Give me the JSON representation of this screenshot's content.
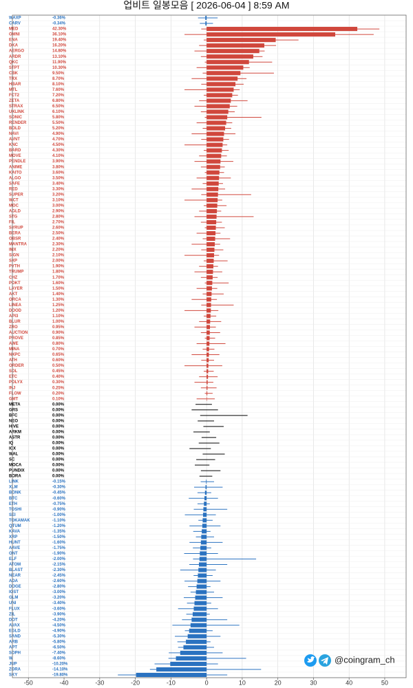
{
  "chart_data": {
    "type": "candle-bar",
    "title": "업비트 일봉모음 [ 2026-06-04 ]  8:59 AM",
    "watermark": "@coingram_ch",
    "up_color": "#d0473c",
    "flat_color": "#000000",
    "down_color": "#2a72c0",
    "grid": true,
    "xlim": [
      -54.5,
      56
    ],
    "xticks": [
      -50,
      -40,
      -30,
      -20,
      -10,
      0,
      10,
      20,
      30,
      40,
      50
    ],
    "categories": [
      "WAXP",
      "CARV",
      "MED",
      "OMNI",
      "ENA",
      "DKA",
      "AERGO",
      "ARDR",
      "QKC",
      "STPT",
      "CBK",
      "TRX",
      "HBAR",
      "MTL",
      "FCT2",
      "ZETA",
      "STRAX",
      "UXLINK",
      "SONIC",
      "RENDER",
      "BOLD",
      "NAVI",
      "AVNT",
      "KNC",
      "BARD",
      "MOVE",
      "PENDLE",
      "ANIME",
      "KAITO",
      "ALGO",
      "SAFE",
      "RED",
      "SUPER",
      "WCT",
      "MOC",
      "AGLD",
      "STG",
      "FIL",
      "SYRUP",
      "BERA",
      "OBSR",
      "MANTRA",
      "IMX",
      "SIGN",
      "SXP",
      "PYTH",
      "TRUMP",
      "CHZ",
      "POKT",
      "LAYER",
      "AKT",
      "ORCA",
      "LINEA",
      "DOOD",
      "API3",
      "BLUR",
      "ZRO",
      "AUCTION",
      "PROVE",
      "AWE",
      "MINA",
      "NXPC",
      "ATH",
      "ORDER",
      "SOL",
      "ETC",
      "POLYX",
      "INJ",
      "FLOW",
      "GMT",
      "META",
      "GRS",
      "BFC",
      "NEO",
      "HIVE",
      "ARKM",
      "ASTR",
      "IQ",
      "ICX",
      "WAL",
      "SC",
      "MOCA",
      "PUNDIX",
      "BORA",
      "LINK",
      "XLM",
      "BONK",
      "BTC",
      "ETH",
      "TOSHI",
      "SEI",
      "TOKAMAK",
      "QTUM",
      "KAVA",
      "XRP",
      "HUNT",
      "AAVE",
      "ONT",
      "ELF",
      "ATOM",
      "BLAST",
      "NEAR",
      "ADA",
      "DOGE",
      "IOST",
      "GLM",
      "UNI",
      "FLUX",
      "ZIL",
      "DOT",
      "AVAX",
      "EGLD",
      "SAND",
      "ARB",
      "APT",
      "SOPH",
      "W",
      "JUP",
      "ZORA",
      "SKY"
    ],
    "values": [
      -0.36,
      -0.34,
      42.3,
      36.1,
      19.4,
      16.2,
      14.8,
      13.1,
      11.9,
      10.3,
      9.5,
      8.7,
      8.1,
      7.6,
      7.2,
      6.8,
      6.5,
      6.1,
      5.8,
      5.5,
      5.2,
      4.9,
      4.7,
      4.5,
      4.3,
      4.1,
      3.9,
      3.8,
      3.6,
      3.5,
      3.4,
      3.3,
      3.2,
      3.1,
      3.0,
      2.9,
      2.8,
      2.7,
      2.6,
      2.5,
      2.4,
      2.3,
      2.2,
      2.1,
      2.0,
      1.9,
      1.8,
      1.7,
      1.6,
      1.5,
      1.4,
      1.3,
      1.25,
      1.2,
      1.1,
      1.0,
      0.95,
      0.9,
      0.85,
      0.8,
      0.7,
      0.65,
      0.6,
      0.5,
      0.45,
      0.4,
      0.3,
      0.25,
      0.2,
      0.1,
      0,
      0,
      0,
      0,
      0,
      0,
      0,
      0,
      0,
      0,
      0,
      0,
      0,
      0,
      -0.15,
      -0.3,
      -0.45,
      -0.6,
      -0.75,
      -0.9,
      -1.0,
      -1.1,
      -1.2,
      -1.35,
      -1.5,
      -1.6,
      -1.75,
      -1.9,
      -2.0,
      -2.15,
      -2.3,
      -2.45,
      -2.6,
      -2.8,
      -3.0,
      -3.2,
      -3.4,
      -3.6,
      -3.9,
      -4.2,
      -4.5,
      -4.9,
      -5.3,
      -5.8,
      -6.5,
      -7.4,
      -8.6,
      -10.2,
      -14.1,
      -19.8
    ],
    "value_labels": [
      "-0.36%",
      "-0.34%",
      "42.30%",
      "36.10%",
      "19.40%",
      "16.20%",
      "14.80%",
      "13.10%",
      "11.90%",
      "10.30%",
      "9.50%",
      "8.70%",
      "8.10%",
      "7.60%",
      "7.20%",
      "6.80%",
      "6.50%",
      "6.10%",
      "5.80%",
      "5.50%",
      "5.20%",
      "4.90%",
      "4.70%",
      "4.50%",
      "4.30%",
      "4.10%",
      "3.90%",
      "3.80%",
      "3.60%",
      "3.50%",
      "3.40%",
      "3.30%",
      "3.20%",
      "3.10%",
      "3.00%",
      "2.90%",
      "2.80%",
      "2.70%",
      "2.60%",
      "2.50%",
      "2.40%",
      "2.30%",
      "2.20%",
      "2.10%",
      "2.00%",
      "1.90%",
      "1.80%",
      "1.70%",
      "1.60%",
      "1.50%",
      "1.40%",
      "1.30%",
      "1.25%",
      "1.20%",
      "1.10%",
      "1.00%",
      "0.95%",
      "0.90%",
      "0.85%",
      "0.80%",
      "0.70%",
      "0.65%",
      "0.60%",
      "0.50%",
      "0.45%",
      "0.40%",
      "0.30%",
      "0.25%",
      "0.20%",
      "0.10%",
      "0.00%",
      "0.00%",
      "0.00%",
      "0.00%",
      "0.00%",
      "0.00%",
      "0.00%",
      "0.00%",
      "0.00%",
      "0.00%",
      "0.00%",
      "0.00%",
      "0.00%",
      "0.00%",
      "-0.15%",
      "-0.30%",
      "-0.45%",
      "-0.60%",
      "-0.75%",
      "-0.90%",
      "-1.00%",
      "-1.10%",
      "-1.20%",
      "-1.35%",
      "-1.50%",
      "-1.60%",
      "-1.75%",
      "-1.90%",
      "-2.00%",
      "-2.15%",
      "-2.30%",
      "-2.45%",
      "-2.60%",
      "-2.80%",
      "-3.00%",
      "-3.20%",
      "-3.40%",
      "-3.60%",
      "-3.90%",
      "-4.20%",
      "-4.50%",
      "-4.90%",
      "-5.30%",
      "-5.80%",
      "-6.50%",
      "-7.40%",
      "-8.60%",
      "-10.20%",
      "-14.10%",
      "-19.80%"
    ],
    "highs": [
      3.1,
      1.8,
      48.5,
      46.9,
      25.8,
      19.5,
      16.3,
      15.7,
      18.4,
      12.1,
      18.9,
      11.2,
      10.4,
      9.3,
      8.8,
      11.5,
      8.6,
      7.9,
      15.4,
      7.2,
      6.9,
      8.1,
      6.3,
      5.8,
      6.2,
      5.7,
      7.5,
      5.1,
      4.9,
      6.8,
      4.6,
      5.2,
      12.5,
      4.4,
      5.6,
      4.1,
      13.2,
      4.3,
      5.1,
      3.9,
      6.6,
      3.8,
      4.7,
      3.5,
      5.9,
      3.2,
      4.4,
      3.1,
      6.2,
      3.0,
      4.8,
      2.9,
      7.6,
      3.3,
      2.7,
      4.1,
      2.6,
      3.8,
      2.4,
      5.3,
      2.2,
      3.6,
      2.1,
      4.4,
      2.0,
      3.1,
      1.9,
      2.8,
      1.7,
      2.3,
      1.5,
      3.2,
      11.5,
      2.1,
      4.8,
      0.9,
      2.7,
      3.6,
      1.2,
      5.1,
      2.4,
      0.8,
      3.9,
      1.6,
      2.1,
      4.5,
      1.3,
      3.2,
      0.9,
      5.8,
      2.6,
      1.7,
      3.9,
      1.1,
      2.1,
      4.5,
      1.3,
      3.2,
      13.9,
      5.8,
      2.6,
      1.7,
      3.9,
      1.1,
      2.1,
      4.5,
      1.3,
      3.2,
      0.9,
      5.8,
      9.2,
      1.7,
      3.9,
      1.1,
      2.1,
      4.5,
      11.1,
      3.2,
      15.3,
      5.8
    ],
    "lows": [
      -2.4,
      -1.9,
      -1.5,
      -6.2,
      -0.8,
      -2.1,
      -3.4,
      -1.6,
      -0.5,
      -2.8,
      -1.1,
      -4.2,
      -1.5,
      -6.2,
      -0.8,
      -2.1,
      -3.4,
      -1.6,
      -0.5,
      -2.8,
      -1.1,
      -4.2,
      -1.5,
      -6.2,
      -0.8,
      -2.1,
      -3.4,
      -1.6,
      -0.5,
      -2.8,
      -1.1,
      -4.2,
      -1.5,
      -6.2,
      -0.8,
      -2.1,
      -3.4,
      -1.6,
      -0.5,
      -2.8,
      -1.1,
      -4.2,
      -1.5,
      -6.2,
      -0.8,
      -2.1,
      -3.4,
      -1.6,
      -0.5,
      -2.8,
      -1.1,
      -4.2,
      -1.5,
      -6.2,
      -0.8,
      -2.1,
      -3.4,
      -1.6,
      -0.5,
      -2.8,
      -1.1,
      -4.2,
      -1.5,
      -6.2,
      -0.8,
      -2.1,
      -3.4,
      -1.6,
      -0.5,
      -2.8,
      -3.1,
      -4.2,
      -1.8,
      -2.5,
      -0.9,
      -3.7,
      -1.4,
      -2.2,
      -4.8,
      -1.1,
      -2.9,
      -3.3,
      -1.6,
      -2.0,
      -1.65,
      -3.5,
      -2.55,
      -5.0,
      -2.55,
      -3.6,
      -6.1,
      -2.3,
      -4.8,
      -3.75,
      -3.0,
      -4.8,
      -3.85,
      -6.3,
      -3.8,
      -4.85,
      -7.4,
      -3.65,
      -6.2,
      -5.2,
      -4.5,
      -6.4,
      -5.5,
      -8.0,
      -5.7,
      -6.9,
      -9.6,
      -6.1,
      -8.9,
      -8.2,
      -8.0,
      -10.6,
      -10.7,
      -14.6,
      -15.9,
      -24.9
    ]
  }
}
